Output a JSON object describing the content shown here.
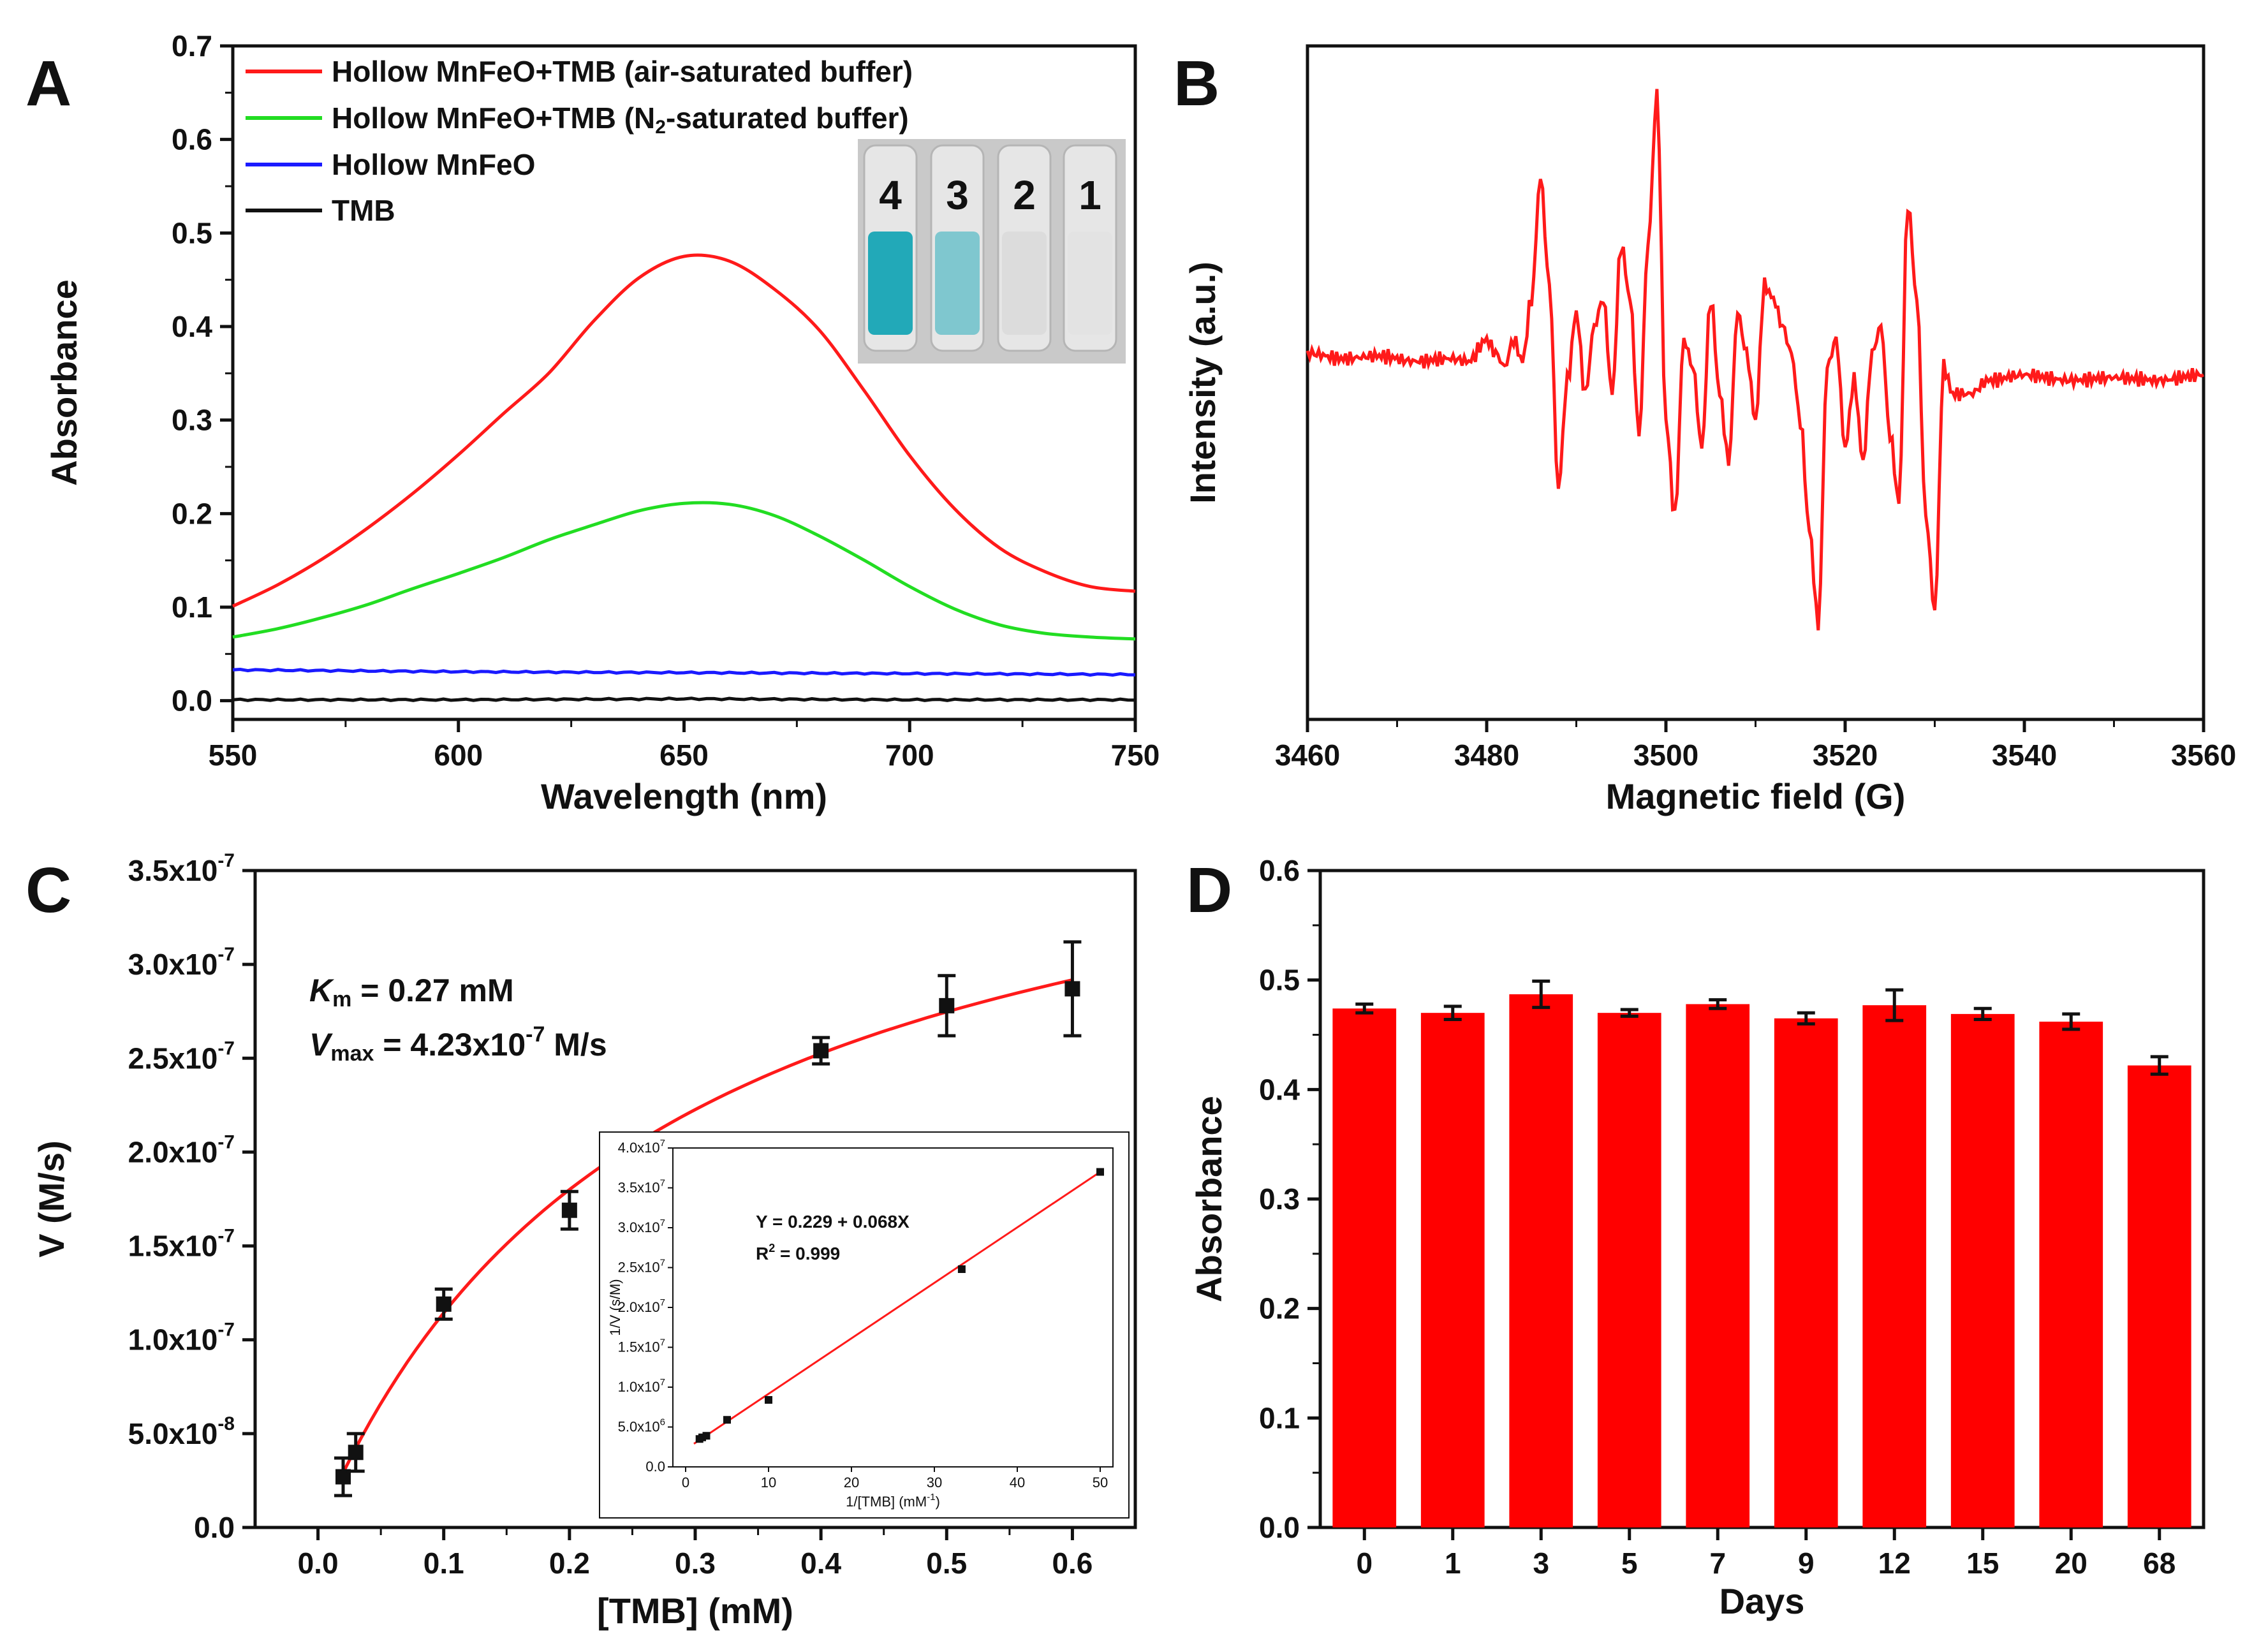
{
  "panels": {
    "A": "A",
    "B": "B",
    "C": "C",
    "D": "D"
  },
  "colors": {
    "red": "#ff1a1a",
    "green": "#22dd22",
    "blue": "#1a1aff",
    "black": "#111111",
    "bar": "#ff0000",
    "vial_blue": "#1fa3b5"
  },
  "chart_data": [
    {
      "panel": "A",
      "type": "line",
      "xlabel": "Wavelength (nm)",
      "ylabel": "Absorbance",
      "xlim": [
        550,
        750
      ],
      "ylim": [
        -0.02,
        0.7
      ],
      "xticks": [
        550,
        600,
        650,
        700,
        750
      ],
      "yticks": [
        0.0,
        0.1,
        0.2,
        0.3,
        0.4,
        0.5,
        0.6,
        0.7
      ],
      "xtick_labels": [
        "550",
        "600",
        "650",
        "700",
        "750"
      ],
      "ytick_labels": [
        "0.0",
        "0.1",
        "0.2",
        "0.3",
        "0.4",
        "0.5",
        "0.6",
        "0.7"
      ],
      "series": [
        {
          "name": "Hollow MnFeO+TMB (air-saturated buffer)",
          "label_main": "Hollow MnFeO+TMB (air-saturated buffer)",
          "color": "#ff1a1a",
          "x": [
            550,
            560,
            570,
            580,
            590,
            600,
            610,
            620,
            630,
            640,
            650,
            660,
            670,
            680,
            690,
            700,
            710,
            720,
            730,
            740,
            750
          ],
          "y": [
            0.101,
            0.124,
            0.152,
            0.185,
            0.222,
            0.263,
            0.307,
            0.35,
            0.406,
            0.452,
            0.475,
            0.47,
            0.44,
            0.396,
            0.331,
            0.262,
            0.205,
            0.163,
            0.138,
            0.122,
            0.117
          ]
        },
        {
          "name": "Hollow MnFeO+TMB (N2-saturated buffer)",
          "label_main": "Hollow MnFeO+TMB (N",
          "label_sub": "2",
          "label_end": "-saturated buffer)",
          "color": "#22dd22",
          "x": [
            550,
            560,
            570,
            580,
            590,
            600,
            610,
            620,
            630,
            640,
            650,
            660,
            670,
            680,
            690,
            700,
            710,
            720,
            730,
            740,
            750
          ],
          "y": [
            0.068,
            0.077,
            0.089,
            0.103,
            0.12,
            0.136,
            0.153,
            0.172,
            0.188,
            0.203,
            0.211,
            0.21,
            0.198,
            0.176,
            0.15,
            0.122,
            0.098,
            0.081,
            0.072,
            0.068,
            0.066
          ]
        },
        {
          "name": "Hollow MnFeO",
          "label_main": "Hollow MnFeO",
          "color": "#1a1aff",
          "x": [
            550,
            600,
            650,
            700,
            750
          ],
          "y": [
            0.033,
            0.031,
            0.03,
            0.029,
            0.028
          ]
        },
        {
          "name": "TMB",
          "label_main": "TMB",
          "color": "#111111",
          "x": [
            550,
            600,
            650,
            700,
            750
          ],
          "y": [
            0.001,
            0.001,
            0.002,
            0.001,
            0.001
          ]
        }
      ],
      "inset_vial_labels": [
        "4",
        "3",
        "2",
        "1"
      ]
    },
    {
      "panel": "B",
      "type": "line",
      "xlabel": "Magnetic field (G)",
      "ylabel": "Intensity (a.u.)",
      "xlim": [
        3460,
        3560
      ],
      "xticks": [
        3460,
        3480,
        3500,
        3520,
        3540,
        3560
      ],
      "xtick_labels": [
        "3460",
        "3480",
        "3500",
        "3520",
        "3540",
        "3560"
      ],
      "ylim": [
        -1.0,
        1.0
      ],
      "series": [
        {
          "name": "EPR spectrum",
          "color": "#ff1a1a",
          "x": [
            3460,
            3464,
            3468,
            3472,
            3476,
            3478,
            3480,
            3481,
            3482,
            3483,
            3484,
            3485,
            3486,
            3487,
            3488,
            3489,
            3490,
            3491,
            3492,
            3493,
            3494,
            3495,
            3496,
            3497,
            3498,
            3499,
            3500,
            3501,
            3502,
            3503,
            3504,
            3505,
            3506,
            3507,
            3508,
            3509,
            3510,
            3511,
            3512,
            3513,
            3514,
            3515,
            3516,
            3517,
            3518,
            3519,
            3520,
            3521,
            3522,
            3523,
            3524,
            3525,
            3526,
            3527,
            3528,
            3529,
            3530,
            3531,
            3532,
            3534,
            3536,
            3540,
            3545,
            3550,
            3555,
            3560
          ],
          "y": [
            0.05,
            0.03,
            0.04,
            0.02,
            0.03,
            0.02,
            0.1,
            0.05,
            0.0,
            0.1,
            0.02,
            0.25,
            0.7,
            0.3,
            -0.45,
            -0.05,
            0.2,
            -0.1,
            0.15,
            0.25,
            -0.1,
            0.45,
            0.25,
            -0.25,
            0.45,
            1.0,
            -0.2,
            -0.55,
            0.1,
            0.0,
            -0.3,
            0.25,
            -0.1,
            -0.35,
            0.2,
            0.05,
            -0.2,
            0.3,
            0.25,
            0.15,
            0.05,
            -0.2,
            -0.6,
            -0.95,
            0.0,
            0.1,
            -0.3,
            -0.05,
            -0.35,
            0.05,
            0.15,
            -0.25,
            -0.5,
            0.6,
            0.25,
            -0.55,
            -0.9,
            0.0,
            -0.1,
            -0.1,
            -0.05,
            -0.03,
            -0.05,
            -0.04,
            -0.05,
            -0.03
          ]
        }
      ]
    },
    {
      "panel": "C",
      "type": "scatter",
      "xlabel": "[TMB] (mM)",
      "ylabel": "V (M/s)",
      "xlim": [
        -0.05,
        0.65
      ],
      "ylim": [
        0,
        3.5e-07
      ],
      "xticks": [
        0.0,
        0.1,
        0.2,
        0.3,
        0.4,
        0.5,
        0.6
      ],
      "xtick_labels": [
        "0.0",
        "0.1",
        "0.2",
        "0.3",
        "0.4",
        "0.5",
        "0.6"
      ],
      "yticks": [
        0,
        5e-08,
        1e-07,
        1.5e-07,
        2e-07,
        2.5e-07,
        3e-07,
        3.5e-07
      ],
      "ytick_mant": [
        "0.0",
        "5.0x10",
        "1.0x10",
        "1.5x10",
        "2.0x10",
        "2.5x10",
        "3.0x10",
        "3.5x10"
      ],
      "ytick_exp": [
        "",
        "-8",
        "-7",
        "-7",
        "-7",
        "-7",
        "-7",
        "-7"
      ],
      "points": {
        "x": [
          0.02,
          0.03,
          0.1,
          0.2,
          0.4,
          0.5,
          0.6
        ],
        "y": [
          2.7e-08,
          4e-08,
          1.19e-07,
          1.69e-07,
          2.54e-07,
          2.78e-07,
          2.87e-07
        ],
        "err": [
          1e-08,
          1e-08,
          8e-09,
          1e-08,
          7e-09,
          1.6e-08,
          2.5e-08
        ]
      },
      "fit": {
        "model": "Michaelis-Menten",
        "Km": 0.27,
        "Vmax": 4.23e-07
      },
      "annotation": {
        "km_label": "K",
        "km_sub": "m",
        "km_value": " = 0.27 mM",
        "vmax_label": "V",
        "vmax_sub": "max",
        "vmax_value": " = 4.23x10",
        "vmax_exp": "-7",
        "vmax_unit": " M/s"
      },
      "inset": {
        "type": "scatter",
        "xlabel": "1/[TMB] (mM",
        "xlabel_exp": "-1",
        "xlabel_end": ")",
        "ylabel": "1/V (s/M)",
        "xlim": [
          0,
          50
        ],
        "ylim": [
          0,
          40000000.0
        ],
        "xticks": [
          0,
          10,
          20,
          30,
          40,
          50
        ],
        "xtick_labels": [
          "0",
          "10",
          "20",
          "30",
          "40",
          "50"
        ],
        "yticks": [
          0,
          5000000.0,
          10000000.0,
          15000000.0,
          20000000.0,
          25000000.0,
          30000000.0,
          35000000.0,
          40000000.0
        ],
        "ytick_mant": [
          "0.0",
          "5.0x10",
          "1.0x10",
          "1.5x10",
          "2.0x10",
          "2.5x10",
          "3.0x10",
          "3.5x10",
          "4.0x10"
        ],
        "ytick_exp": [
          "",
          "6",
          "7",
          "7",
          "7",
          "7",
          "7",
          "7",
          "7"
        ],
        "x": [
          1.67,
          2.0,
          2.5,
          5.0,
          10.0,
          33.3,
          50.0
        ],
        "y": [
          3500000.0,
          3700000.0,
          3900000.0,
          5900000.0,
          8400000.0,
          24800000.0,
          37000000.0
        ],
        "equation": "Y = 0.229 + 0.068X",
        "r2_label": "R",
        "r2_exp": "2",
        "r2_value": " = 0.999",
        "fit_line": {
          "x0": 1.0,
          "y0": 2900000.0,
          "x1": 50.0,
          "y1": 37000000.0
        }
      }
    },
    {
      "panel": "D",
      "type": "bar",
      "xlabel": "Days",
      "ylabel": "Absorbance",
      "categories": [
        "0",
        "1",
        "3",
        "5",
        "7",
        "9",
        "12",
        "15",
        "20",
        "68"
      ],
      "values": [
        0.474,
        0.47,
        0.487,
        0.47,
        0.478,
        0.465,
        0.477,
        0.469,
        0.462,
        0.422
      ],
      "errors": [
        0.004,
        0.006,
        0.012,
        0.003,
        0.004,
        0.005,
        0.014,
        0.005,
        0.007,
        0.008
      ],
      "ylim": [
        0,
        0.6
      ],
      "yticks": [
        0.0,
        0.1,
        0.2,
        0.3,
        0.4,
        0.5,
        0.6
      ],
      "ytick_labels": [
        "0.0",
        "0.1",
        "0.2",
        "0.3",
        "0.4",
        "0.5",
        "0.6"
      ]
    }
  ]
}
